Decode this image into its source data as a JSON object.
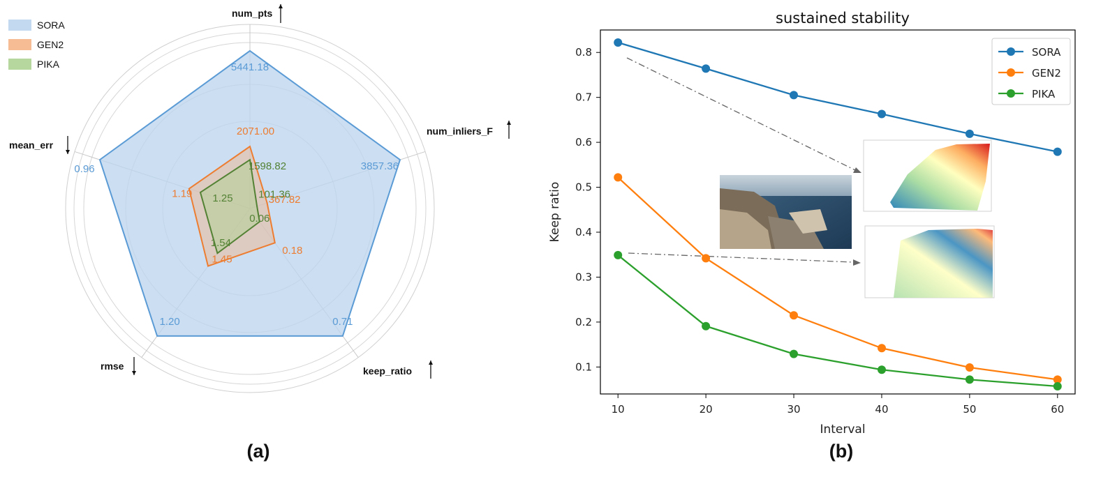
{
  "chart_data": [
    {
      "type": "radar",
      "panel_label": "(a)",
      "axes": [
        {
          "name": "num_pts",
          "direction": "up"
        },
        {
          "name": "num_inliers_F",
          "direction": "up"
        },
        {
          "name": "keep_ratio",
          "direction": "up"
        },
        {
          "name": "rmse",
          "direction": "down"
        },
        {
          "name": "mean_err",
          "direction": "down"
        }
      ],
      "series": [
        {
          "name": "SORA",
          "color": "#5b9bd5",
          "fill": "#bcd5ee",
          "labels": [
            "5441.18",
            "3857.36",
            "0.71",
            "1.20",
            "0.96"
          ],
          "values": [
            5441.18,
            3857.36,
            0.71,
            1.2,
            0.96
          ]
        },
        {
          "name": "GEN2",
          "color": "#ed7d31",
          "fill": "#f4b183",
          "labels": [
            "2071.00",
            "367.82",
            "0.18",
            "1.45",
            "1.19"
          ],
          "values": [
            2071.0,
            367.82,
            0.18,
            1.45,
            1.19
          ]
        },
        {
          "name": "PIKA",
          "color": "#548235",
          "fill": "#a9d18e",
          "labels": [
            "1598.82",
            "101.36",
            "0.06",
            "1.54",
            "1.25"
          ],
          "values": [
            1598.82,
            101.36,
            0.06,
            1.54,
            1.25
          ]
        }
      ]
    },
    {
      "type": "line",
      "panel_label": "(b)",
      "title": "sustained stability",
      "xlabel": "Interval",
      "ylabel": "Keep ratio",
      "x": [
        10,
        20,
        30,
        40,
        50,
        60
      ],
      "xticks": [
        "10",
        "20",
        "30",
        "40",
        "50",
        "60"
      ],
      "yticks": [
        "0.1",
        "0.2",
        "0.3",
        "0.4",
        "0.5",
        "0.6",
        "0.7",
        "0.8"
      ],
      "ylim": [
        0.04,
        0.85
      ],
      "legend": "top-right",
      "series": [
        {
          "name": "SORA",
          "color": "#1f77b4",
          "values": [
            0.822,
            0.764,
            0.705,
            0.663,
            0.619,
            0.579
          ]
        },
        {
          "name": "GEN2",
          "color": "#ff7f0e",
          "values": [
            0.522,
            0.342,
            0.215,
            0.142,
            0.099,
            0.072
          ]
        },
        {
          "name": "PIKA",
          "color": "#2ca02c",
          "values": [
            0.349,
            0.191,
            0.129,
            0.094,
            0.072,
            0.057
          ]
        }
      ]
    }
  ]
}
